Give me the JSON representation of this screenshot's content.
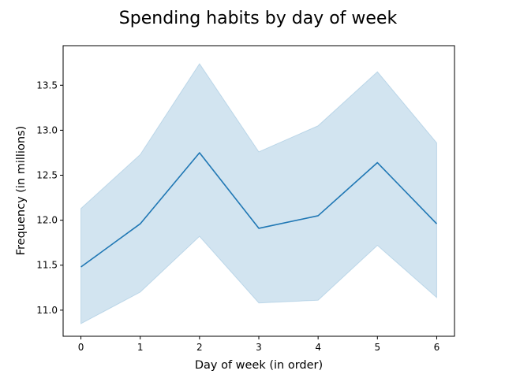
{
  "chart_data": {
    "type": "line",
    "title": "Spending habits by day of week",
    "xlabel": "Day of week (in order)",
    "ylabel": "Frequency (in millions)",
    "x": [
      0,
      1,
      2,
      3,
      4,
      5,
      6
    ],
    "xlim": [
      -0.3,
      6.3
    ],
    "ylim": [
      10.71,
      13.94
    ],
    "xticks": [
      0,
      1,
      2,
      3,
      4,
      5,
      6
    ],
    "yticks": [
      11.0,
      11.5,
      12.0,
      12.5,
      13.0,
      13.5
    ],
    "ytick_labels": [
      "11.0",
      "11.5",
      "12.0",
      "12.5",
      "13.0",
      "13.5"
    ],
    "grid": false,
    "series": [
      {
        "values": [
          11.48,
          11.96,
          12.75,
          11.91,
          12.05,
          12.64,
          11.96
        ],
        "ci_lower": [
          10.85,
          11.2,
          11.82,
          11.08,
          11.11,
          11.72,
          11.14
        ],
        "ci_upper": [
          12.13,
          12.73,
          13.74,
          12.76,
          13.05,
          13.65,
          12.86
        ],
        "color": "#1f77b4",
        "band_color": "#1f77b4"
      }
    ]
  }
}
